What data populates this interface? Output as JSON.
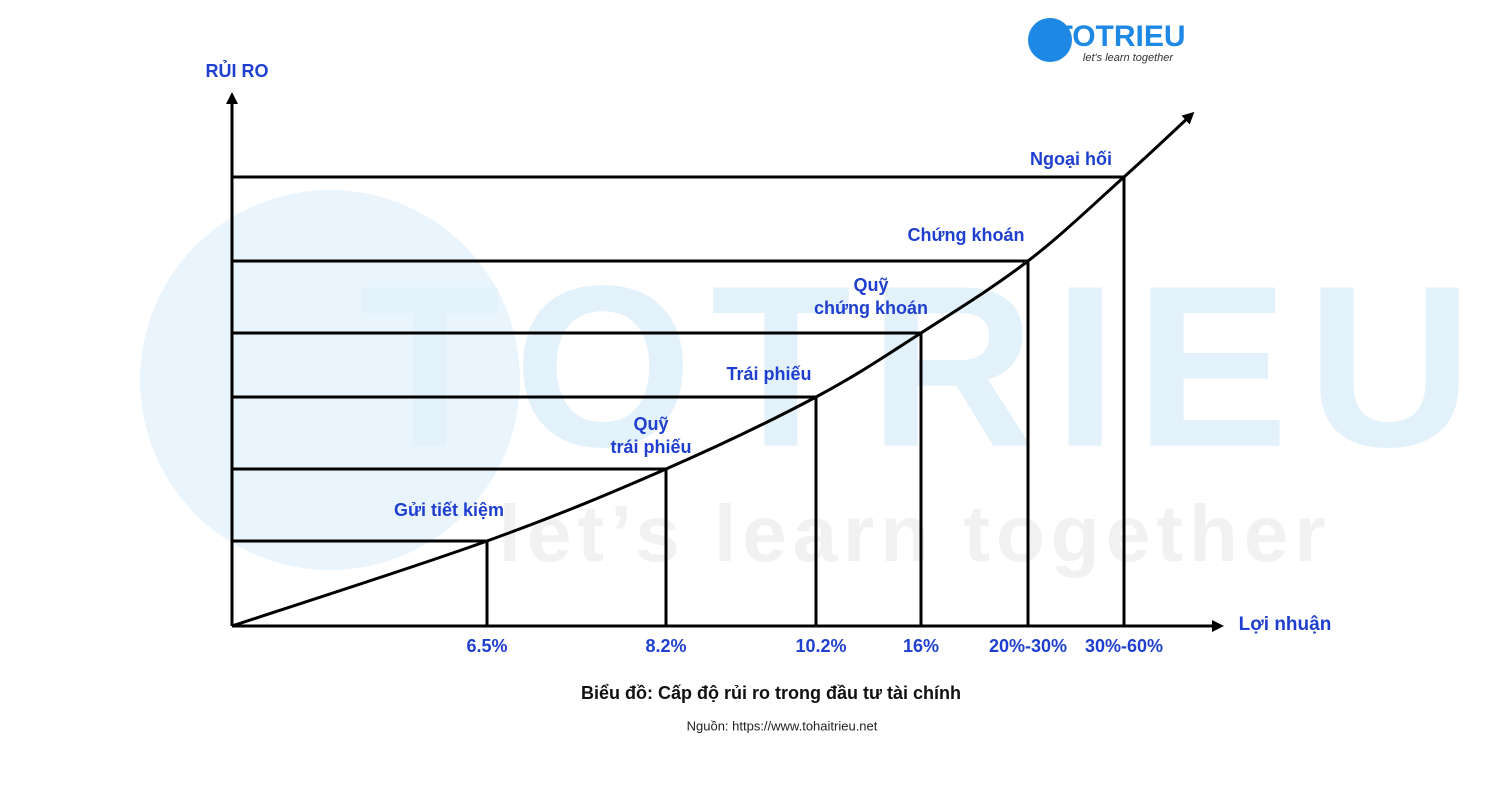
{
  "logo": {
    "name": "TOTRIEU",
    "tagline": "let's learn together"
  },
  "watermark": {
    "name": "TOTRIEU",
    "tagline": "let’s learn together"
  },
  "y_axis_label": "RỦI RO",
  "x_axis_label": "Lợi nhuận",
  "points": [
    {
      "label": [
        "Gửi tiết kiệm"
      ],
      "return": "6.5%"
    },
    {
      "label": [
        "Quỹ",
        "trái phiếu"
      ],
      "return": "8.2%"
    },
    {
      "label": [
        "Trái phiếu"
      ],
      "return": "10.2%"
    },
    {
      "label": [
        "Quỹ",
        "chứng khoán"
      ],
      "return": "16%"
    },
    {
      "label": [
        "Chứng khoán"
      ],
      "return": "20%-30%"
    },
    {
      "label": [
        "Ngoại hối"
      ],
      "return": "30%-60%"
    }
  ],
  "caption": "Biểu đồ: Cấp độ rủi ro trong đầu tư  tài chính",
  "source": "Nguồn: https://www.tohaitrieu.net"
}
